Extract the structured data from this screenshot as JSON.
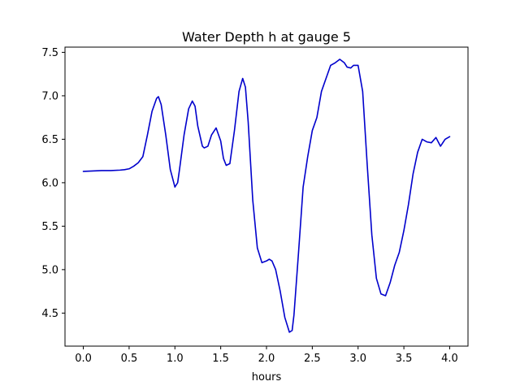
{
  "chart_data": {
    "type": "line",
    "title": "Water Depth h at gauge 5",
    "xlabel": "hours",
    "ylabel": "",
    "xlim": [
      -0.2,
      4.2
    ],
    "ylim": [
      4.12,
      7.56
    ],
    "xticks": [
      0.0,
      0.5,
      1.0,
      1.5,
      2.0,
      2.5,
      3.0,
      3.5,
      4.0
    ],
    "xtick_labels": [
      "0.0",
      "0.5",
      "1.0",
      "1.5",
      "2.0",
      "2.5",
      "3.0",
      "3.5",
      "4.0"
    ],
    "yticks": [
      4.5,
      5.0,
      5.5,
      6.0,
      6.5,
      7.0,
      7.5
    ],
    "ytick_labels": [
      "4.5",
      "5.0",
      "5.5",
      "6.0",
      "6.5",
      "7.0",
      "7.5"
    ],
    "grid": false,
    "legend": "none",
    "series": [
      {
        "color": "#0000cc",
        "x": [
          0.0,
          0.1,
          0.2,
          0.3,
          0.4,
          0.45,
          0.5,
          0.55,
          0.6,
          0.65,
          0.7,
          0.75,
          0.8,
          0.82,
          0.85,
          0.9,
          0.95,
          1.0,
          1.03,
          1.05,
          1.1,
          1.15,
          1.19,
          1.22,
          1.25,
          1.3,
          1.32,
          1.36,
          1.4,
          1.45,
          1.5,
          1.53,
          1.56,
          1.6,
          1.65,
          1.7,
          1.74,
          1.77,
          1.8,
          1.85,
          1.9,
          1.95,
          2.0,
          2.03,
          2.06,
          2.1,
          2.15,
          2.2,
          2.25,
          2.28,
          2.3,
          2.35,
          2.4,
          2.45,
          2.5,
          2.55,
          2.6,
          2.65,
          2.7,
          2.75,
          2.8,
          2.85,
          2.88,
          2.92,
          2.95,
          3.0,
          3.05,
          3.1,
          3.15,
          3.2,
          3.25,
          3.3,
          3.35,
          3.4,
          3.45,
          3.5,
          3.55,
          3.6,
          3.65,
          3.7,
          3.75,
          3.8,
          3.85,
          3.9,
          3.95,
          4.0
        ],
        "y": [
          6.13,
          6.135,
          6.14,
          6.14,
          6.145,
          6.15,
          6.16,
          6.19,
          6.23,
          6.3,
          6.55,
          6.82,
          6.97,
          6.99,
          6.9,
          6.55,
          6.15,
          5.95,
          6.0,
          6.15,
          6.55,
          6.85,
          6.94,
          6.88,
          6.65,
          6.42,
          6.4,
          6.42,
          6.55,
          6.63,
          6.48,
          6.28,
          6.2,
          6.22,
          6.6,
          7.05,
          7.2,
          7.1,
          6.7,
          5.8,
          5.25,
          5.08,
          5.1,
          5.12,
          5.1,
          5.0,
          4.75,
          4.45,
          4.28,
          4.3,
          4.48,
          5.2,
          5.95,
          6.3,
          6.6,
          6.75,
          7.05,
          7.2,
          7.35,
          7.38,
          7.42,
          7.38,
          7.33,
          7.32,
          7.35,
          7.35,
          7.05,
          6.2,
          5.4,
          4.9,
          4.72,
          4.7,
          4.85,
          5.05,
          5.2,
          5.45,
          5.75,
          6.1,
          6.35,
          6.5,
          6.47,
          6.46,
          6.52,
          6.42,
          6.5,
          6.53
        ]
      }
    ]
  }
}
